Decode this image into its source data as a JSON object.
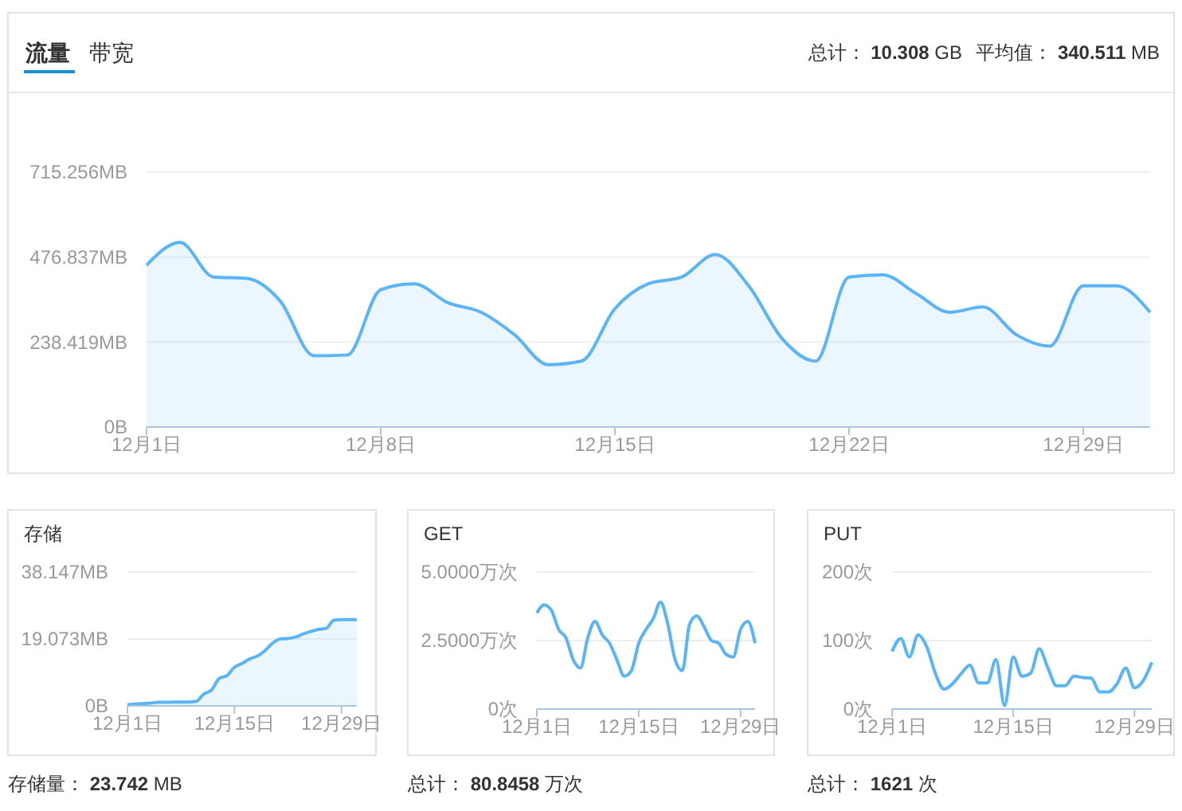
{
  "chart_data": [
    {
      "type": "area",
      "title": "流量",
      "annotations": [
        "带宽",
        "总计： 10.308 GB",
        "平均值： 340.511 MB"
      ],
      "categories": [
        "12月1日",
        null,
        null,
        null,
        null,
        null,
        null,
        "12月8日",
        null,
        null,
        null,
        null,
        null,
        null,
        "12月15日",
        null,
        null,
        null,
        null,
        null,
        null,
        "12月22日",
        null,
        null,
        null,
        null,
        null,
        null,
        "12月29日",
        null,
        null
      ],
      "series": [
        {
          "color": "#5ab4f5",
          "values": [
            454,
            518,
            421,
            417,
            353,
            200,
            202,
            385,
            402,
            349,
            322,
            259,
            175,
            185,
            332,
            402,
            421,
            484,
            396,
            248,
            185,
            421,
            427,
            375,
            322,
            337,
            259,
            227,
            396,
            396,
            322
          ]
        }
      ],
      "ylim": [
        0,
        715.256
      ],
      "yticks": [
        {
          "value": 0,
          "label": "0B"
        },
        {
          "value": 238.419,
          "label": "238.419MB"
        },
        {
          "value": 476.837,
          "label": "476.837MB"
        },
        {
          "value": 715.256,
          "label": "715.256MB"
        }
      ],
      "grid": "y"
    },
    {
      "type": "area",
      "title": "存储",
      "annotations": [
        "存储量： 23.742 MB"
      ],
      "categories": [
        "12月1日",
        null,
        null,
        null,
        null,
        null,
        null,
        null,
        null,
        null,
        null,
        null,
        null,
        null,
        "12月15日",
        null,
        null,
        null,
        null,
        null,
        null,
        null,
        null,
        null,
        null,
        null,
        null,
        null,
        "12月29日",
        null,
        null
      ],
      "series": [
        {
          "color": "#5ab4f5",
          "values": [
            0.3,
            0.5,
            0.6,
            0.8,
            1.0,
            1.0,
            1.1,
            1.1,
            1.1,
            1.3,
            3.4,
            4.5,
            7.8,
            8.6,
            11.0,
            12.1,
            13.4,
            14.2,
            15.8,
            17.9,
            19.1,
            19.2,
            19.6,
            20.5,
            21.2,
            21.8,
            22.1,
            24.4,
            24.6,
            24.6,
            24.6
          ]
        }
      ],
      "ylim": [
        0,
        38.147
      ],
      "yticks": [
        {
          "value": 0,
          "label": "0B"
        },
        {
          "value": 19.073,
          "label": "19.073MB"
        },
        {
          "value": 38.147,
          "label": "38.147MB"
        }
      ],
      "grid": "y"
    },
    {
      "type": "line",
      "title": "GET",
      "annotations": [
        "总计： 80.8458 万次"
      ],
      "categories": [
        "12月1日",
        null,
        null,
        null,
        null,
        null,
        null,
        null,
        null,
        null,
        null,
        null,
        null,
        null,
        "12月15日",
        null,
        null,
        null,
        null,
        null,
        null,
        null,
        null,
        null,
        null,
        null,
        null,
        null,
        "12月29日",
        null,
        null
      ],
      "series": [
        {
          "color": "#5ab4f5",
          "values": [
            3.5,
            3.8,
            3.6,
            2.9,
            2.6,
            1.8,
            1.5,
            2.6,
            3.2,
            2.7,
            2.4,
            1.8,
            1.2,
            1.4,
            2.4,
            2.9,
            3.3,
            3.9,
            3.1,
            1.8,
            1.4,
            3.1,
            3.4,
            3.0,
            2.5,
            2.4,
            2.0,
            1.9,
            2.9,
            3.2,
            2.4
          ]
        }
      ],
      "ylim": [
        0,
        5
      ],
      "yticks": [
        {
          "value": 0,
          "label": "0次"
        },
        {
          "value": 2.5,
          "label": "2.5000万次"
        },
        {
          "value": 5,
          "label": "5.0000万次"
        }
      ],
      "grid": "y"
    },
    {
      "type": "line",
      "title": "PUT",
      "annotations": [
        "总计： 1621 次"
      ],
      "categories": [
        "12月1日",
        null,
        null,
        null,
        null,
        null,
        null,
        null,
        null,
        null,
        null,
        null,
        null,
        null,
        "12月15日",
        null,
        null,
        null,
        null,
        null,
        null,
        null,
        null,
        null,
        null,
        null,
        null,
        null,
        "12月29日",
        null,
        null
      ],
      "series": [
        {
          "color": "#5ab4f5",
          "values": [
            84,
            103,
            76,
            108,
            91,
            52,
            29,
            37,
            52,
            64,
            38,
            38,
            72,
            5,
            76,
            48,
            52,
            88,
            60,
            34,
            34,
            48,
            46,
            45,
            25,
            25,
            37,
            60,
            31,
            41,
            68
          ]
        }
      ],
      "ylim": [
        0,
        200
      ],
      "yticks": [
        {
          "value": 0,
          "label": "0次"
        },
        {
          "value": 100,
          "label": "100次"
        },
        {
          "value": 200,
          "label": "200次"
        }
      ],
      "grid": "y"
    }
  ]
}
